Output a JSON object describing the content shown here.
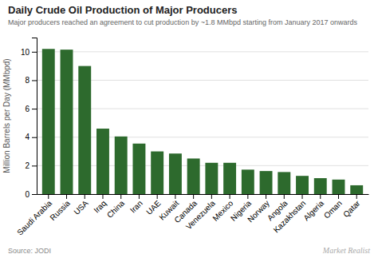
{
  "chart_data": {
    "type": "bar",
    "title": "Daily Crude Oil Production of Major Producers",
    "subtitle": "Major producers reached an agreement to cut production by ~1.8 MMbpd starting from January 2017 onwards",
    "ylabel": "Million Barrels per Day (MMbpd)",
    "source": "Source: JODI",
    "watermark": "Market Realist",
    "categories": [
      "Saudi Arabia",
      "Russia",
      "USA",
      "Iraq",
      "China",
      "Iran",
      "UAE",
      "Kuwait",
      "Canada",
      "Venezuela",
      "Mexico",
      "Nigeria",
      "Norway",
      "Angola",
      "Kazakhstan",
      "Algeria",
      "Oman",
      "Qatar"
    ],
    "values": [
      10.2,
      10.15,
      9.0,
      4.6,
      4.05,
      3.55,
      3.0,
      2.85,
      2.5,
      2.2,
      2.2,
      1.72,
      1.62,
      1.55,
      1.28,
      1.12,
      1.02,
      0.62
    ],
    "color": "#2d6a2d",
    "ylim": [
      0,
      11
    ],
    "yticks": [
      0,
      2,
      4,
      6,
      8,
      10
    ],
    "grid": true
  }
}
